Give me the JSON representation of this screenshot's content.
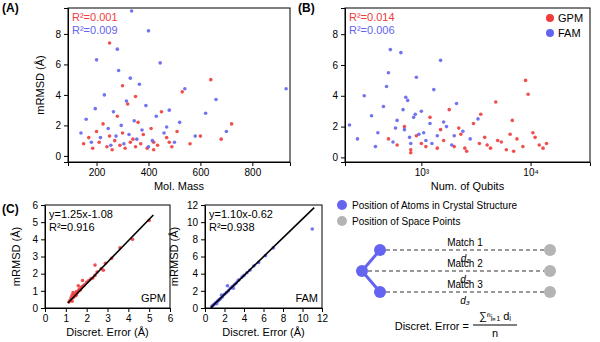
{
  "chart_data": [
    {
      "type": "scatter",
      "title": "(A)",
      "x_label": "Mol. Mass",
      "y_label": "mRMSD (Å)",
      "xlim": [
        90,
        945
      ],
      "xticks": [
        200,
        400,
        600,
        800
      ],
      "ylim": [
        -0.4,
        9.7
      ],
      "yticks": [
        0,
        2,
        4,
        6,
        8
      ],
      "annotations": [
        {
          "text": "R²=0.001",
          "color": "#f03c3c"
        },
        {
          "text": "R²=0.009",
          "color": "#6464f0"
        }
      ],
      "series": [
        {
          "color": "#f03c3c",
          "x": [
            150,
            170,
            185,
            200,
            210,
            225,
            240,
            250,
            260,
            270,
            280,
            290,
            300,
            310,
            320,
            330,
            340,
            350,
            360,
            370,
            380,
            395,
            410,
            420,
            435,
            450,
            470,
            490,
            510,
            530,
            560,
            600,
            640,
            680,
            720,
            250,
            300,
            350,
            420,
            480
          ],
          "values": [
            0.8,
            1.2,
            0.5,
            1.6,
            0.9,
            2.1,
            0.6,
            1.3,
            0.4,
            1.0,
            2.6,
            0.7,
            1.5,
            0.5,
            3.4,
            0.9,
            1.1,
            0.6,
            2.2,
            0.8,
            1.4,
            0.5,
            1.8,
            0.9,
            0.7,
            2.9,
            1.2,
            0.6,
            1.6,
            4.2,
            0.8,
            1.3,
            5.0,
            1.1,
            2.1,
            7.4,
            4.6,
            3.9,
            0.4,
            0.9
          ]
        },
        {
          "color": "#6464f0",
          "x": [
            140,
            160,
            180,
            195,
            215,
            230,
            245,
            255,
            265,
            275,
            285,
            295,
            305,
            315,
            325,
            335,
            345,
            355,
            365,
            375,
            390,
            400,
            415,
            430,
            445,
            460,
            480,
            500,
            520,
            540,
            580,
            620,
            660,
            700,
            930,
            200,
            280,
            330,
            400,
            470
          ],
          "values": [
            1.5,
            2.4,
            0.9,
            3.1,
            1.2,
            4.0,
            1.8,
            0.7,
            2.9,
            1.3,
            5.6,
            2.0,
            0.8,
            3.6,
            1.4,
            9.5,
            2.3,
            1.1,
            4.7,
            1.7,
            3.3,
            8.2,
            1.0,
            2.6,
            6.1,
            1.5,
            3.0,
            0.9,
            2.2,
            4.4,
            1.3,
            2.8,
            3.7,
            1.6,
            4.4,
            6.3,
            7.0,
            5.1,
            0.6,
            1.9
          ]
        }
      ]
    },
    {
      "type": "scatter",
      "title": "(B)",
      "x_label": "Num. of Qubits",
      "log": "x",
      "legend": "upper right",
      "xlim": [
        200,
        35000
      ],
      "xticks": [
        {
          "value": 1000,
          "label": "10³"
        },
        {
          "value": 10000,
          "label": "10⁴"
        }
      ],
      "ylim": [
        -0.3,
        9.7
      ],
      "yticks": [
        0,
        2,
        4,
        6,
        8
      ],
      "annotations": [
        {
          "text": "R²=0.014",
          "color": "#f03c3c"
        },
        {
          "text": "R²=0.006",
          "color": "#6464f0"
        }
      ],
      "series": [
        {
          "name": "GPM",
          "color": "#f03c3c",
          "x": [
            500,
            600,
            700,
            800,
            900,
            1000,
            1200,
            1400,
            1600,
            1800,
            2000,
            2300,
            2600,
            3000,
            3400,
            3800,
            4300,
            4800,
            5400,
            6000,
            6800,
            7500,
            8500,
            9500,
            10500,
            12000,
            14000,
            800,
            1500,
            2500,
            3500,
            5000,
            7000,
            9000,
            11000,
            1100,
            2200,
            4000,
            6500,
            13000
          ],
          "values": [
            1.2,
            0.8,
            2.0,
            0.5,
            1.4,
            0.9,
            2.6,
            0.6,
            1.1,
            3.1,
            0.7,
            1.5,
            0.4,
            2.2,
            0.9,
            1.3,
            0.6,
            3.6,
            1.0,
            0.5,
            2.4,
            1.2,
            0.7,
            4.1,
            1.6,
            0.8,
            0.9,
            0.3,
            1.8,
            0.6,
            2.8,
            1.1,
            0.4,
            5.0,
            1.3,
            0.7,
            1.9,
            0.8,
            1.5,
            0.6
          ]
        },
        {
          "name": "FAM",
          "color": "#6464f0",
          "x": [
            220,
            260,
            300,
            350,
            400,
            450,
            500,
            550,
            600,
            650,
            700,
            750,
            800,
            850,
            900,
            950,
            1000,
            1100,
            1200,
            1300,
            1400,
            1500,
            1700,
            1900,
            2100,
            2400,
            2800,
            3300,
            380,
            480,
            580,
            680,
            780,
            880,
            1050,
            1250,
            1600,
            2000,
            520,
            720
          ],
          "values": [
            2.1,
            1.2,
            4.0,
            2.7,
            1.6,
            3.3,
            5.5,
            1.0,
            2.4,
            6.8,
            1.8,
            3.7,
            0.9,
            2.6,
            5.2,
            1.5,
            3.0,
            1.1,
            2.2,
            4.4,
            1.4,
            6.3,
            2.0,
            0.8,
            3.5,
            1.7,
            1.2,
            2.5,
            0.7,
            4.6,
            1.9,
            3.1,
            1.3,
            2.8,
            1.6,
            0.9,
            2.3,
            1.4,
            7.0,
            3.9
          ]
        }
      ]
    },
    {
      "type": "scatter",
      "title": "(C)",
      "x_label": "Discret. Error (Å)",
      "y_label": "mRMSD (Å)",
      "xlim": [
        0,
        6
      ],
      "xticks": [
        0,
        1,
        2,
        3,
        4,
        5,
        6
      ],
      "ylim": [
        0,
        6
      ],
      "yticks": [
        0,
        1,
        2,
        3,
        4,
        5,
        6
      ],
      "annotations": [
        {
          "text": "y=1.25x-1.08"
        },
        {
          "text": "R²=0.916"
        }
      ],
      "fit": {
        "slope": 1.25,
        "intercept": -1.08,
        "x_range": [
          1.1,
          5.2
        ]
      },
      "series": [
        {
          "name": "GPM",
          "color": "#f03c3c",
          "x": [
            1.15,
            1.2,
            1.25,
            1.3,
            1.3,
            1.35,
            1.4,
            1.45,
            1.5,
            1.5,
            1.55,
            1.6,
            1.65,
            1.7,
            1.75,
            1.8,
            1.85,
            1.9,
            2.0,
            2.1,
            2.2,
            2.3,
            2.4,
            2.5,
            2.7,
            2.9,
            3.2,
            3.6,
            4.2,
            5.0,
            1.35,
            1.6,
            1.8,
            2.4,
            2.8
          ],
          "values": [
            0.35,
            0.45,
            0.6,
            0.4,
            0.75,
            0.6,
            0.8,
            0.7,
            0.95,
            0.75,
            0.9,
            1.0,
            1.1,
            1.05,
            1.2,
            1.25,
            1.3,
            1.35,
            1.5,
            1.6,
            1.7,
            1.75,
            1.9,
            2.1,
            2.3,
            2.6,
            2.9,
            3.5,
            4.0,
            5.1,
            0.9,
            1.3,
            1.6,
            2.5,
            2.2
          ]
        }
      ]
    },
    {
      "type": "scatter",
      "x_label": "Discret. Error (Å)",
      "y_label": "mRMSD (Å)",
      "xlim": [
        0,
        12
      ],
      "xticks": [
        0,
        2,
        4,
        6,
        8,
        10,
        12
      ],
      "ylim": [
        0,
        12
      ],
      "yticks": [
        0,
        2,
        4,
        6,
        8,
        10,
        12
      ],
      "annotations": [
        {
          "text": "y=1.10x-0.62"
        },
        {
          "text": "R²=0.938"
        }
      ],
      "fit": {
        "slope": 1.1,
        "intercept": -0.62,
        "x_range": [
          0.6,
          11.2
        ]
      },
      "series": [
        {
          "name": "FAM",
          "color": "#6464f0",
          "x": [
            0.7,
            0.8,
            0.9,
            1.0,
            1.1,
            1.2,
            1.3,
            1.4,
            1.5,
            1.6,
            1.8,
            2.0,
            2.2,
            2.4,
            2.6,
            2.8,
            3.0,
            3.2,
            3.5,
            3.8,
            4.0,
            4.3,
            4.6,
            5.0,
            5.5,
            6.2,
            7.0,
            11.0,
            1.2,
            1.7,
            2.3,
            2.9,
            3.4
          ],
          "values": [
            0.2,
            0.3,
            0.4,
            0.5,
            0.6,
            0.7,
            0.8,
            0.9,
            1.0,
            1.1,
            1.3,
            1.6,
            1.8,
            2.0,
            2.3,
            2.5,
            2.7,
            2.9,
            3.3,
            3.6,
            3.8,
            4.1,
            4.4,
            4.9,
            5.3,
            6.1,
            7.0,
            9.2,
            0.5,
            1.5,
            2.6,
            2.3,
            3.2
          ]
        }
      ]
    }
  ],
  "diagram": {
    "legend": [
      {
        "label": "Position of Atoms in Crystal Structure",
        "color": "#6464f0"
      },
      {
        "label": "Position of Space Points",
        "color": "#b4b4b4"
      }
    ],
    "matches": [
      {
        "label": "Match 1",
        "distance": "d₁"
      },
      {
        "label": "Match 2",
        "distance": "d₂"
      },
      {
        "label": "Match 3",
        "distance": "d₃"
      }
    ],
    "formula": {
      "lhs": "Discret. Error =",
      "numerator": "∑ⁿᵢ₌₁ dᵢ",
      "denominator": "n"
    }
  }
}
